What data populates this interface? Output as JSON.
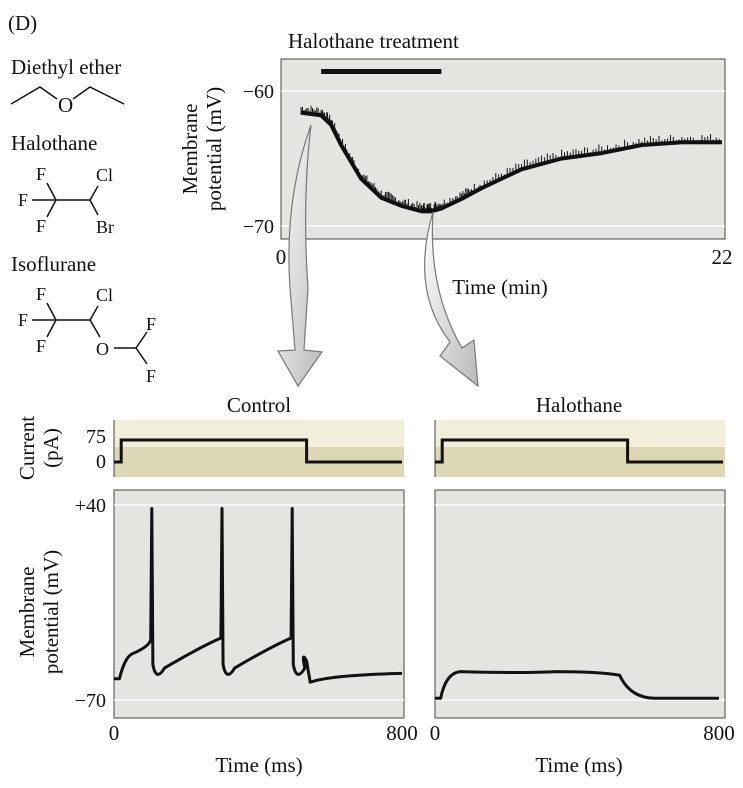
{
  "panel_label": "(D)",
  "molecules": {
    "diethyl_ether": {
      "name": "Diethyl ether",
      "atoms": [
        "O"
      ]
    },
    "halothane": {
      "name": "Halothane",
      "atoms": [
        "F",
        "F",
        "F",
        "Cl",
        "Br"
      ]
    },
    "isoflurane": {
      "name": "Isoflurane",
      "atoms": [
        "F",
        "F",
        "F",
        "Cl",
        "O",
        "F",
        "F"
      ]
    }
  },
  "top_plot": {
    "title": "Halothane treatment",
    "ylabel_line1": "Membrane",
    "ylabel_line2": "potential (mV)",
    "yticks": [
      "−60",
      "−70"
    ],
    "xmin_label": "0",
    "xmax_label": "22",
    "xlabel": "Time (min)",
    "treatment_bar_minutes": [
      2.0,
      8.0
    ],
    "trace_minutes": [
      1.0,
      2.0,
      2.5,
      3.0,
      4.0,
      5.0,
      6.0,
      7.0,
      7.5,
      8.0,
      9.0,
      10.0,
      12.0,
      14.0,
      16.0,
      18.0,
      20.0,
      22.0
    ],
    "trace_mV": [
      -61.6,
      -61.8,
      -62.5,
      -64.0,
      -66.5,
      -67.9,
      -68.5,
      -68.9,
      -68.9,
      -68.7,
      -68.0,
      -67.2,
      -65.8,
      -65.0,
      -64.6,
      -64.0,
      -63.8,
      -63.8
    ]
  },
  "bottom_left": {
    "title": "Control",
    "current_label_line1": "Current",
    "current_label_line2": "(pA)",
    "current_ticks": [
      "75",
      "0"
    ],
    "ylabel_line1": "Membrane",
    "ylabel_line2": "potential (mV)",
    "yticks": [
      "+40",
      "−70"
    ],
    "xmin_label": "0",
    "xmax_label": "800",
    "xlabel": "Time (ms)",
    "step_on_ms": 20,
    "step_off_ms": 535,
    "spike_times_ms": [
      105,
      300,
      495
    ]
  },
  "bottom_right": {
    "title": "Halothane",
    "xmin_label": "0",
    "xmax_label": "800",
    "xlabel": "Time (ms)",
    "step_on_ms": 20,
    "step_off_ms": 535
  },
  "colors": {
    "plot_bg": "#e4e5e0",
    "current_bg_top": "#f1eed9",
    "current_bg_bottom": "#ddd7b6",
    "trace": "#111111",
    "arrow_fill": "#cccccc",
    "arrow_stroke": "#777777"
  }
}
